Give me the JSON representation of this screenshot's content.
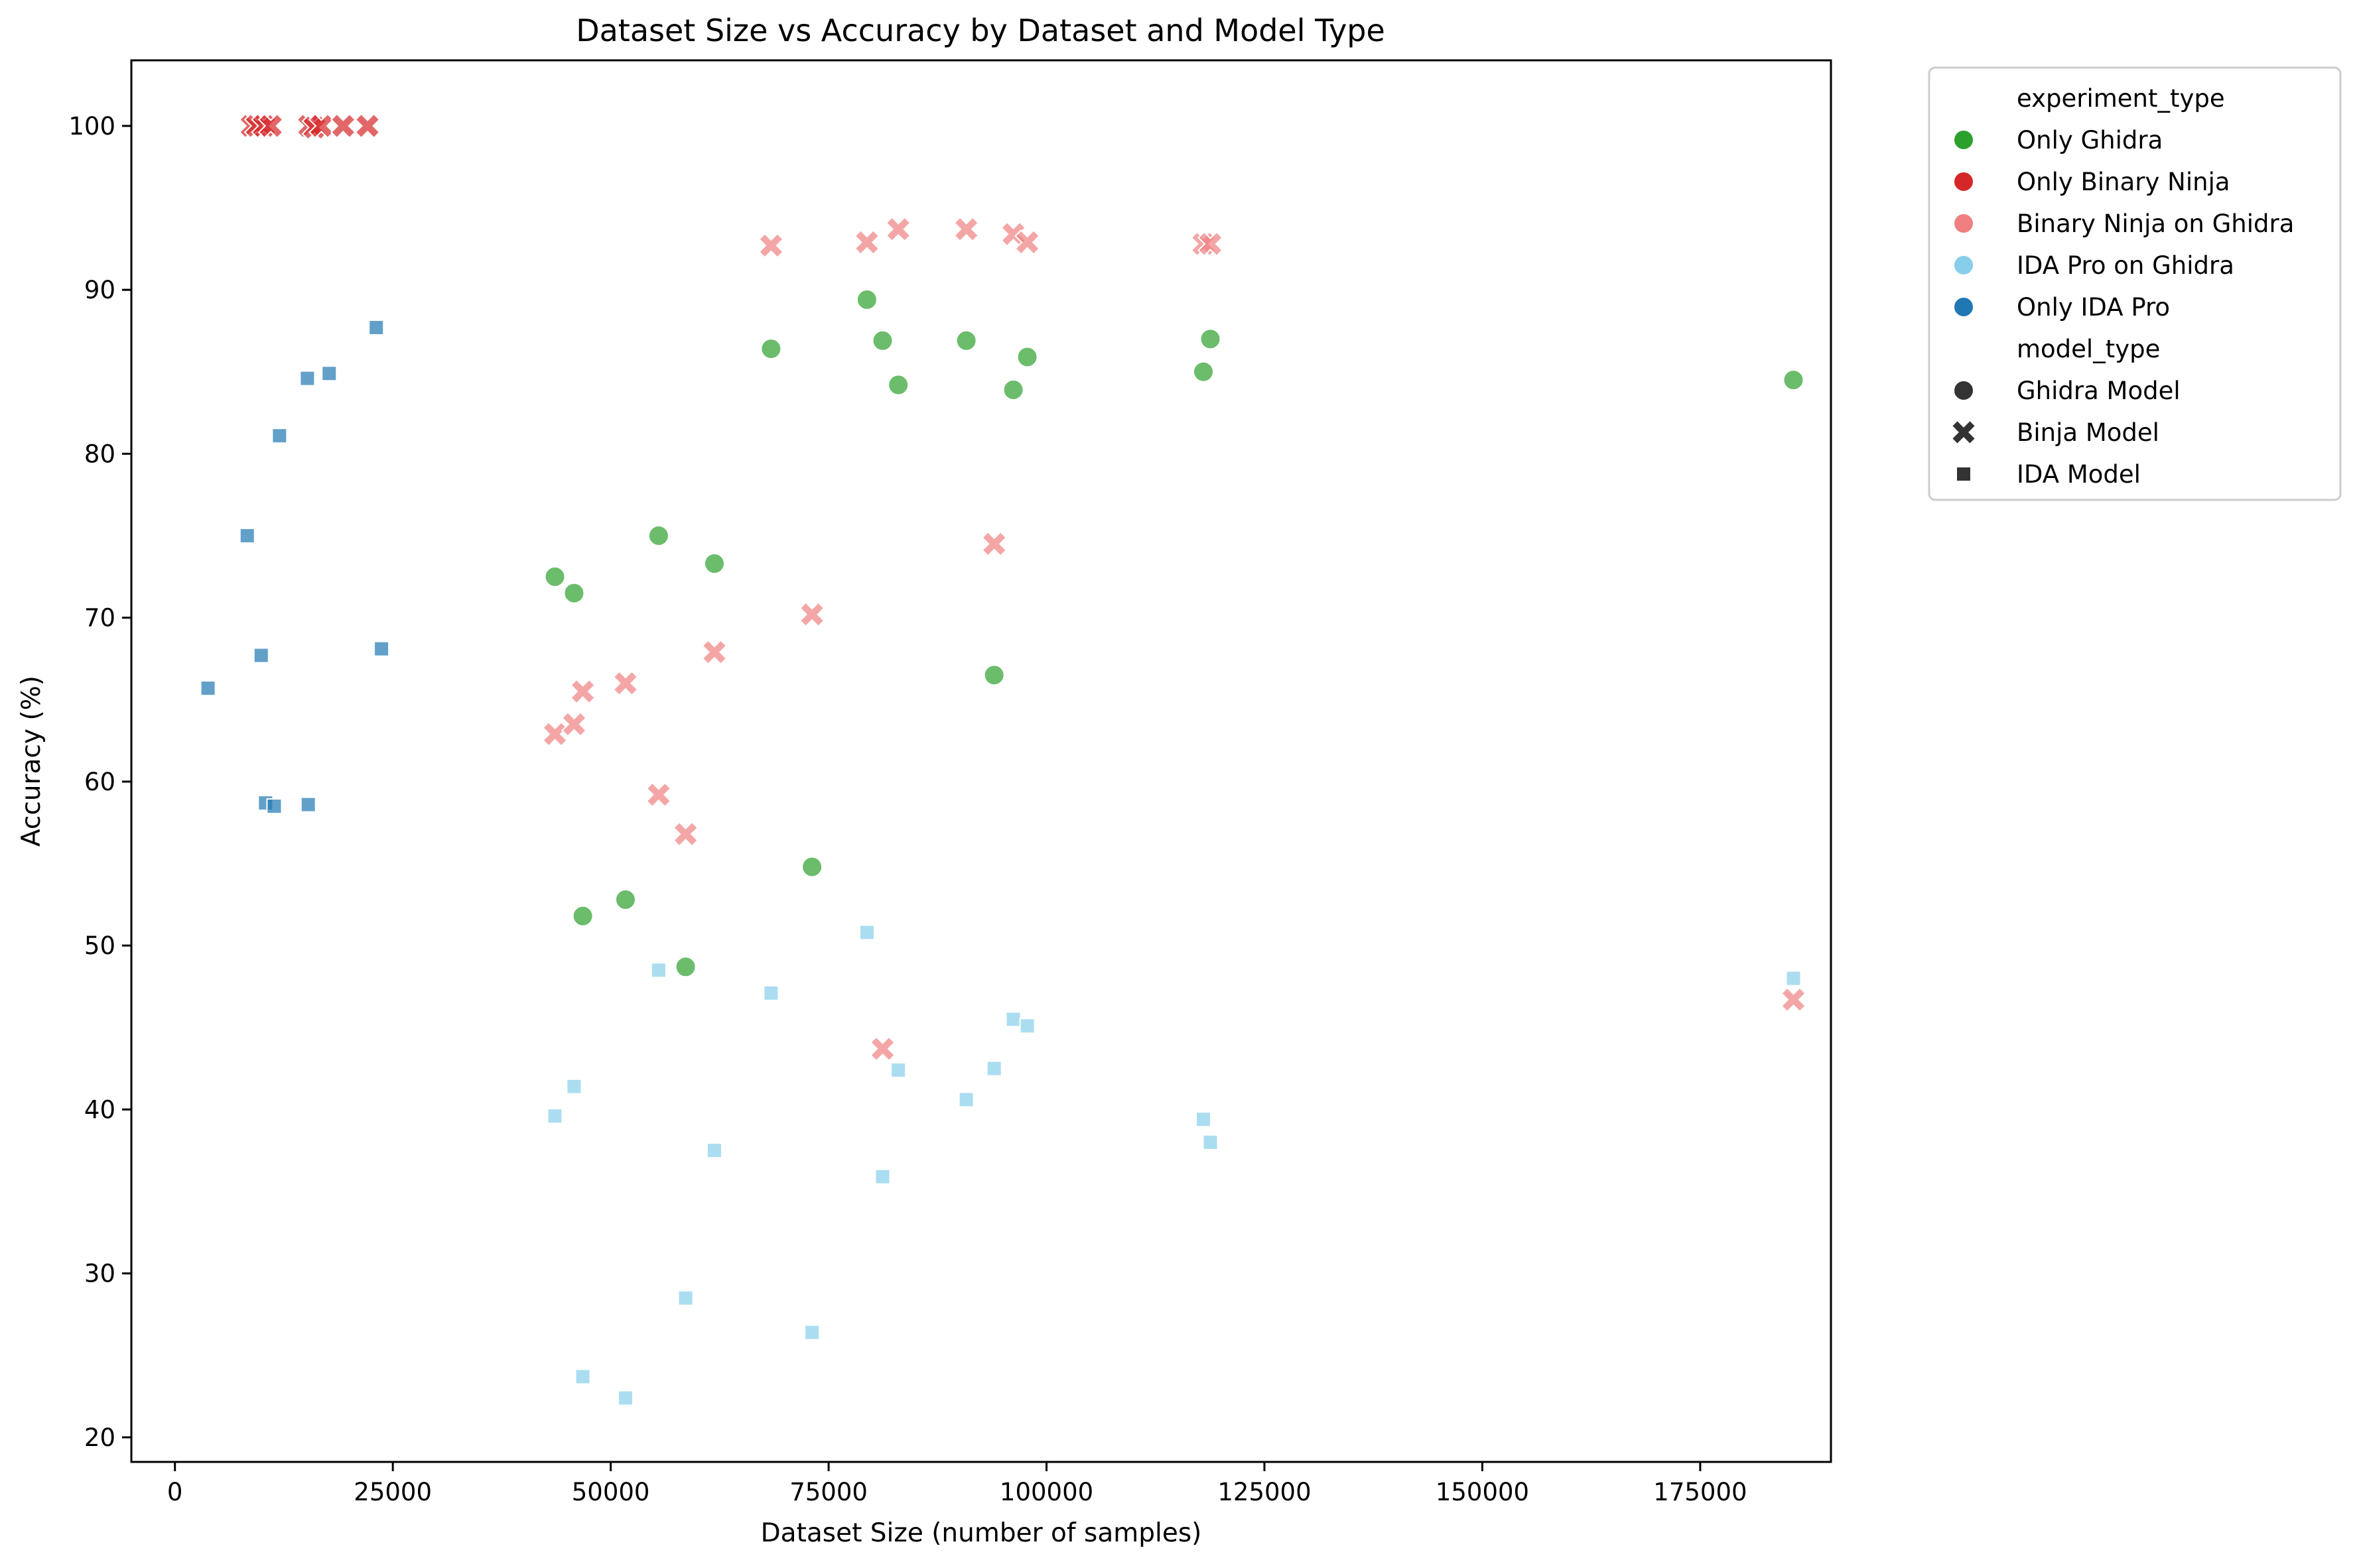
{
  "chart_data": {
    "type": "scatter",
    "title": "Dataset Size vs Accuracy by Dataset and Model Type",
    "xlabel": "Dataset Size (number of samples)",
    "ylabel": "Accuracy (%)",
    "xlim": [
      -5000,
      190000
    ],
    "ylim": [
      18.5,
      104
    ],
    "x_ticks": [
      0,
      25000,
      50000,
      75000,
      100000,
      125000,
      150000,
      175000
    ],
    "x_tick_labels": [
      "0",
      "25000",
      "50000",
      "75000",
      "100000",
      "125000",
      "150000",
      "175000"
    ],
    "y_ticks": [
      20,
      30,
      40,
      50,
      60,
      70,
      80,
      90,
      100
    ],
    "y_tick_labels": [
      "20",
      "30",
      "40",
      "50",
      "60",
      "70",
      "80",
      "90",
      "100"
    ],
    "grid": false,
    "legend_placement": "outside-right-top",
    "legend": {
      "hue_title": "experiment_type",
      "hue_entries": [
        {
          "name": "Only Ghidra",
          "color": "#2ca02c"
        },
        {
          "name": "Only Binary Ninja",
          "color": "#d62728"
        },
        {
          "name": "Binary Ninja on Ghidra",
          "color": "#f08080"
        },
        {
          "name": "IDA Pro on Ghidra",
          "color": "#87ceeb"
        },
        {
          "name": "Only IDA Pro",
          "color": "#1f77b4"
        }
      ],
      "style_title": "model_type",
      "style_entries": [
        {
          "name": "Ghidra Model",
          "marker": "circle"
        },
        {
          "name": "Binja Model",
          "marker": "x"
        },
        {
          "name": "IDA Model",
          "marker": "square"
        }
      ]
    },
    "series": [
      {
        "name": "Only Ghidra",
        "marker": "circle",
        "color": "#2ca02c",
        "points": [
          [
            43600,
            72.5
          ],
          [
            45800,
            71.5
          ],
          [
            46800,
            51.8
          ],
          [
            51700,
            52.8
          ],
          [
            55500,
            75.0
          ],
          [
            58600,
            48.7
          ],
          [
            61900,
            73.3
          ],
          [
            68400,
            86.4
          ],
          [
            73100,
            54.8
          ],
          [
            79400,
            89.4
          ],
          [
            81200,
            86.9
          ],
          [
            83000,
            84.2
          ],
          [
            90800,
            86.9
          ],
          [
            94000,
            66.5
          ],
          [
            96200,
            83.9
          ],
          [
            97800,
            85.9
          ],
          [
            118000,
            85.0
          ],
          [
            118800,
            87.0
          ],
          [
            185700,
            84.5
          ]
        ]
      },
      {
        "name": "Only Binary Ninja",
        "marker": "x",
        "color": "#d62728",
        "points": [
          [
            8800,
            100
          ],
          [
            9400,
            100
          ],
          [
            10200,
            100
          ],
          [
            11000,
            100
          ],
          [
            15400,
            100
          ],
          [
            16000,
            99.9
          ],
          [
            16800,
            100
          ],
          [
            19300,
            100
          ],
          [
            22100,
            100
          ]
        ]
      },
      {
        "name": "Binary Ninja on Ghidra",
        "marker": "x",
        "color": "#f08080",
        "points": [
          [
            43600,
            62.9
          ],
          [
            45800,
            63.5
          ],
          [
            46800,
            65.5
          ],
          [
            51700,
            66.0
          ],
          [
            55500,
            59.2
          ],
          [
            58600,
            56.8
          ],
          [
            61900,
            67.9
          ],
          [
            68400,
            92.7
          ],
          [
            73100,
            70.2
          ],
          [
            79400,
            92.9
          ],
          [
            81200,
            43.7
          ],
          [
            83000,
            93.7
          ],
          [
            90800,
            93.7
          ],
          [
            94000,
            74.5
          ],
          [
            96200,
            93.4
          ],
          [
            97800,
            92.9
          ],
          [
            118000,
            92.8
          ],
          [
            118800,
            92.8
          ],
          [
            185700,
            46.7
          ]
        ]
      },
      {
        "name": "IDA Pro on Ghidra",
        "marker": "square",
        "color": "#87ceeb",
        "points": [
          [
            43600,
            39.6
          ],
          [
            45800,
            41.4
          ],
          [
            46800,
            23.7
          ],
          [
            51700,
            22.4
          ],
          [
            55500,
            48.5
          ],
          [
            58600,
            28.5
          ],
          [
            61900,
            37.5
          ],
          [
            68400,
            47.1
          ],
          [
            73100,
            26.4
          ],
          [
            79400,
            50.8
          ],
          [
            81200,
            35.9
          ],
          [
            83000,
            42.4
          ],
          [
            90800,
            40.6
          ],
          [
            94000,
            42.5
          ],
          [
            96200,
            45.5
          ],
          [
            97800,
            45.1
          ],
          [
            118000,
            39.4
          ],
          [
            118800,
            38.0
          ],
          [
            185700,
            48.0
          ]
        ]
      },
      {
        "name": "Only IDA Pro",
        "marker": "square",
        "color": "#1f77b4",
        "points": [
          [
            3800,
            65.7
          ],
          [
            8300,
            75.0
          ],
          [
            9900,
            67.7
          ],
          [
            10400,
            58.7
          ],
          [
            11400,
            58.5
          ],
          [
            12000,
            81.1
          ],
          [
            15200,
            84.6
          ],
          [
            15300,
            58.6
          ],
          [
            17700,
            84.9
          ],
          [
            23100,
            87.7
          ],
          [
            23700,
            68.1
          ]
        ]
      }
    ]
  }
}
